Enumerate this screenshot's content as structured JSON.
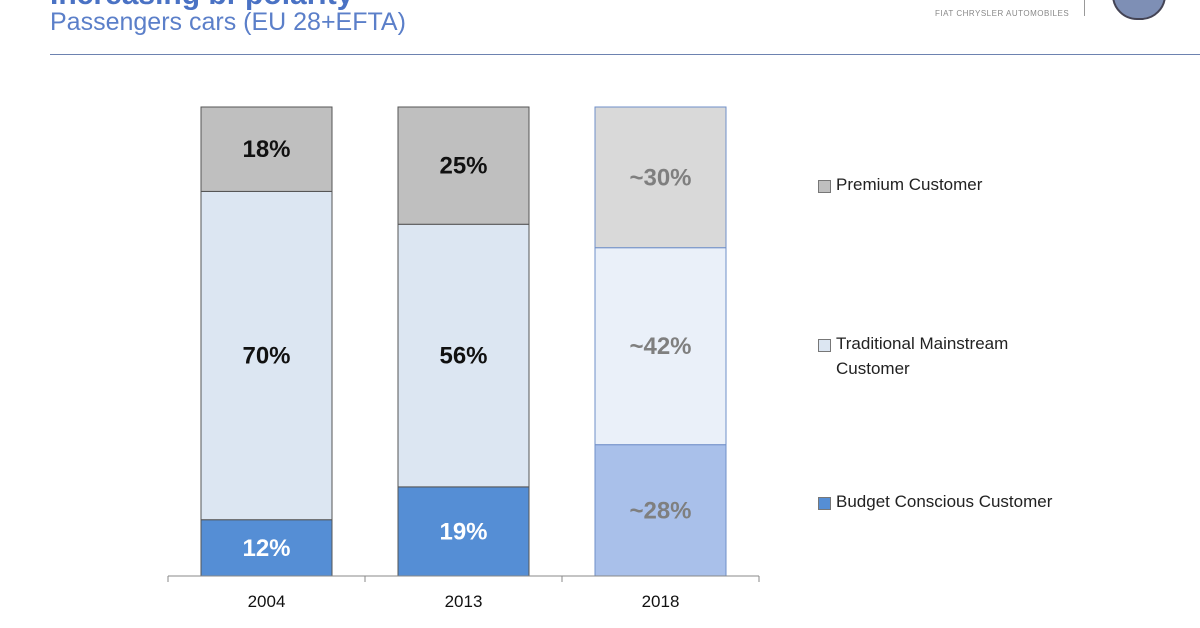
{
  "header": {
    "title": "Increasing bi-polarity",
    "subtitle": "Passengers cars (EU 28+EFTA)",
    "logo_text": "FIAT CHRYSLER AUTOMOBILES"
  },
  "chart_data": {
    "type": "bar",
    "stacked": true,
    "normalized": true,
    "categories": [
      "2004",
      "2013",
      "2018"
    ],
    "series": [
      {
        "name": "Budget Conscious Customer",
        "values": [
          12,
          19,
          28
        ],
        "labels": [
          "12%",
          "19%",
          "~28%"
        ],
        "color": "#558ed5"
      },
      {
        "name": "Traditional Mainstream Customer",
        "values": [
          70,
          56,
          42
        ],
        "labels": [
          "70%",
          "56%",
          "~42%"
        ],
        "color": "#dce6f2"
      },
      {
        "name": "Premium Customer",
        "values": [
          18,
          25,
          30
        ],
        "labels": [
          "18%",
          "25%",
          "~30%"
        ],
        "color": "#bfbfbf"
      }
    ],
    "estimate_colors": {
      "Budget Conscious Customer": "#a9c0ea",
      "Traditional Mainstream Customer": "#eaf0f9",
      "Premium Customer": "#d9d9d9"
    },
    "estimated_categories": [
      "2018"
    ],
    "ylim": [
      0,
      100
    ],
    "grid": false,
    "legend_position": "right",
    "legend_order": [
      "Premium Customer",
      "Traditional Mainstream Customer",
      "Budget Conscious Customer"
    ]
  }
}
